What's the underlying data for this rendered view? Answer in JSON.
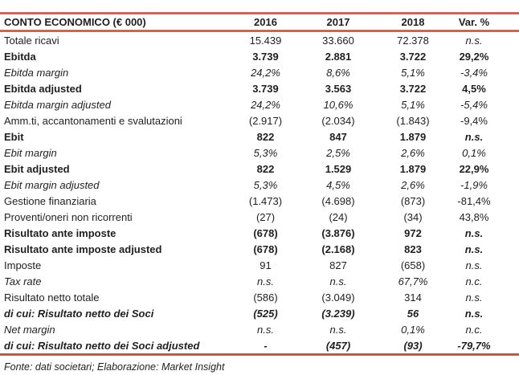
{
  "colors": {
    "accent": "#c5695d",
    "text": "#1f1f1f"
  },
  "table": {
    "header": {
      "label": "CONTO ECONOMICO (€ 000)",
      "cols": [
        "2016",
        "2017",
        "2018",
        "Var. %"
      ]
    },
    "rows": [
      {
        "label": "Totale ricavi",
        "values": [
          "15.439",
          "33.660",
          "72.378"
        ],
        "var": "n.s.",
        "style": "regular",
        "var_style": "italic"
      },
      {
        "label": "Ebitda",
        "values": [
          "3.739",
          "2.881",
          "3.722"
        ],
        "var": "29,2%",
        "style": "bold"
      },
      {
        "label": "Ebitda margin",
        "values": [
          "24,2%",
          "8,6%",
          "5,1%"
        ],
        "var": "-3,4%",
        "style": "italic"
      },
      {
        "label": "Ebitda adjusted",
        "values": [
          "3.739",
          "3.563",
          "3.722"
        ],
        "var": "4,5%",
        "style": "bold"
      },
      {
        "label": "Ebitda margin adjusted",
        "values": [
          "24,2%",
          "10,6%",
          "5,1%"
        ],
        "var": "-5,4%",
        "style": "italic"
      },
      {
        "label": "Amm.ti, accantonamenti e svalutazioni",
        "values": [
          "(2.917)",
          "(2.034)",
          "(1.843)"
        ],
        "var": "-9,4%",
        "style": "regular"
      },
      {
        "label": "Ebit",
        "values": [
          "822",
          "847",
          "1.879"
        ],
        "var": "n.s.",
        "style": "bold",
        "var_style": "bold-italic"
      },
      {
        "label": "Ebit margin",
        "values": [
          "5,3%",
          "2,5%",
          "2,6%"
        ],
        "var": "0,1%",
        "style": "italic"
      },
      {
        "label": "Ebit adjusted",
        "values": [
          "822",
          "1.529",
          "1.879"
        ],
        "var": "22,9%",
        "style": "bold"
      },
      {
        "label": "Ebit margin adjusted",
        "values": [
          "5,3%",
          "4,5%",
          "2,6%"
        ],
        "var": "-1,9%",
        "style": "italic"
      },
      {
        "label": "Gestione finanziaria",
        "values": [
          "(1.473)",
          "(4.698)",
          "(873)"
        ],
        "var": "-81,4%",
        "style": "regular"
      },
      {
        "label": "Proventi/oneri non ricorrenti",
        "values": [
          "(27)",
          "(24)",
          "(34)"
        ],
        "var": "43,8%",
        "style": "regular"
      },
      {
        "label": "Risultato ante imposte",
        "values": [
          "(678)",
          "(3.876)",
          "972"
        ],
        "var": "n.s.",
        "style": "bold",
        "var_style": "bold-italic"
      },
      {
        "label": "Risultato ante imposte adjusted",
        "values": [
          "(678)",
          "(2.168)",
          "823"
        ],
        "var": "n.s.",
        "style": "bold",
        "var_style": "bold-italic"
      },
      {
        "label": "Imposte",
        "values": [
          "91",
          "827",
          "(658)"
        ],
        "var": "n.s.",
        "style": "regular",
        "var_style": "italic"
      },
      {
        "label": "Tax rate",
        "values": [
          "n.s.",
          "n.s.",
          "67,7%"
        ],
        "var": "n.c.",
        "style": "italic"
      },
      {
        "label": "Risultato netto totale",
        "values": [
          "(586)",
          "(3.049)",
          "314"
        ],
        "var": "n.s.",
        "style": "regular",
        "var_style": "italic"
      },
      {
        "label": "di cui: Risultato netto dei Soci",
        "values": [
          "(525)",
          "(3.239)",
          "56"
        ],
        "var": "n.s.",
        "style": "bold-italic"
      },
      {
        "label": "Net margin",
        "values": [
          "n.s.",
          "n.s.",
          "0,1%"
        ],
        "var": "n.c.",
        "style": "italic"
      },
      {
        "label": "di cui: Risultato netto dei Soci adjusted",
        "values": [
          "-",
          "(457)",
          "(93)"
        ],
        "var": "-79,7%",
        "style": "bold-italic"
      }
    ]
  },
  "footer": {
    "text": "Fonte: dati societari; Elaborazione: Market Insight"
  }
}
